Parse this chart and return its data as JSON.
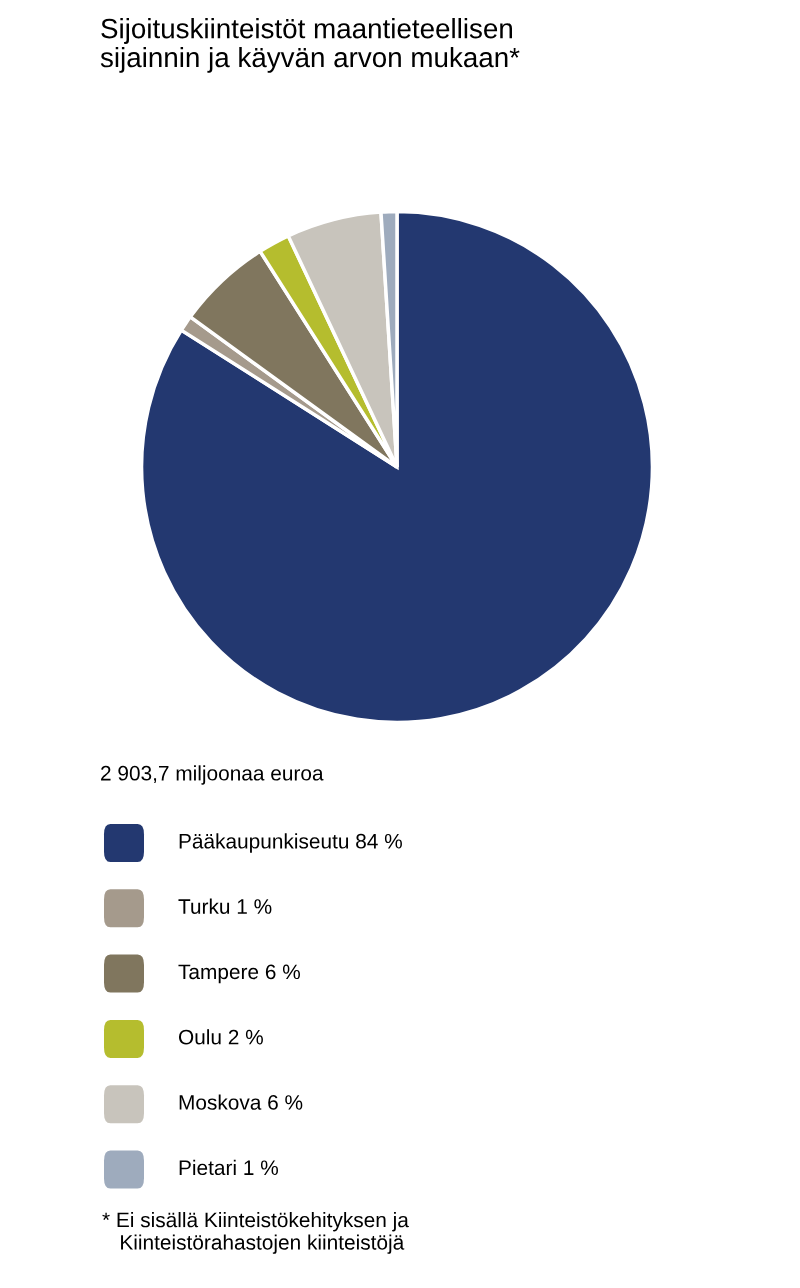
{
  "chart_data": {
    "type": "pie",
    "title": "Sijoituskiinteistöt maantieteellisen\nsijainnin ja käyvän arvon mukaan*",
    "subtitle": "2 903,7 miljoonaa euroa",
    "categories": [
      "Pääkaupunkiseutu 84 %",
      "Turku 1 %",
      "Tampere 6 %",
      "Oulu 2 %",
      "Moskova 6 %",
      "Pietari 1 %"
    ],
    "values": [
      84,
      1,
      6,
      2,
      6,
      1
    ],
    "colors": [
      "#233870",
      "#a59a8c",
      "#80765e",
      "#b5bd2e",
      "#c8c4bc",
      "#9eabbd"
    ],
    "legend": "bottom",
    "annotations": [
      "* Ei sisällä Kiinteistökehityksen ja\n   Kiinteistörahastojen kiinteistöjä"
    ]
  }
}
